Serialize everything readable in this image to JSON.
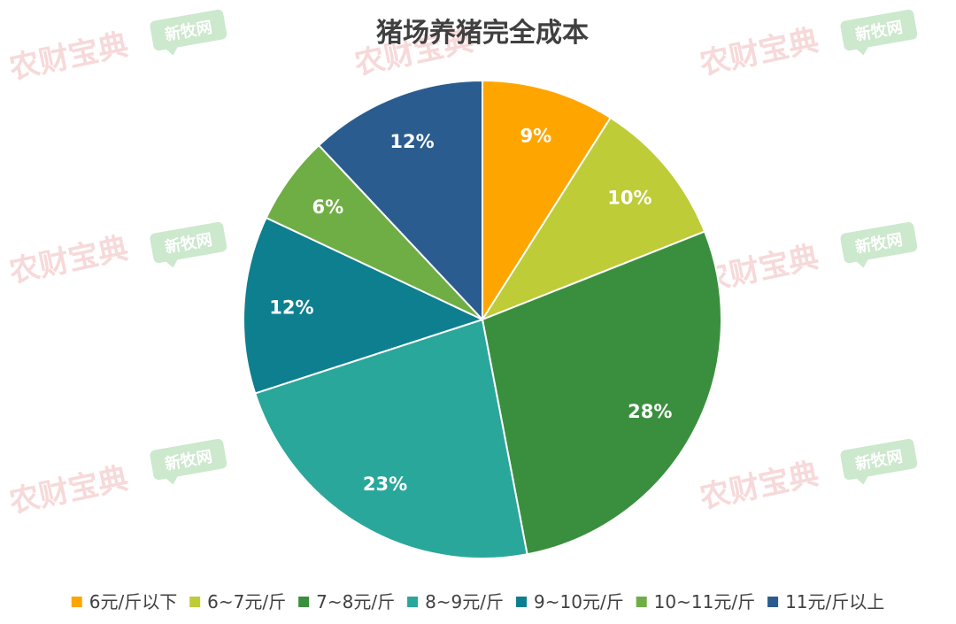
{
  "chart_data": {
    "type": "pie",
    "title": "猪场养猪完全成本",
    "categories": [
      "6元/斤以下",
      "6~7元/斤",
      "7~8元/斤",
      "8~9元/斤",
      "9~10元/斤",
      "10~11元/斤",
      "11元/斤以上"
    ],
    "values": [
      9,
      10,
      28,
      23,
      12,
      6,
      12
    ],
    "labels": [
      "9%",
      "10%",
      "28%",
      "23%",
      "12%",
      "6%",
      "12%"
    ],
    "colors": [
      "#FFA500",
      "#BDCC37",
      "#3A8F3E",
      "#2AA79B",
      "#0D7F8F",
      "#6FAE45",
      "#2A5C8F"
    ],
    "legend_position": "bottom"
  },
  "watermarks": {
    "primary": "农财宝典",
    "secondary": "新牧网"
  }
}
